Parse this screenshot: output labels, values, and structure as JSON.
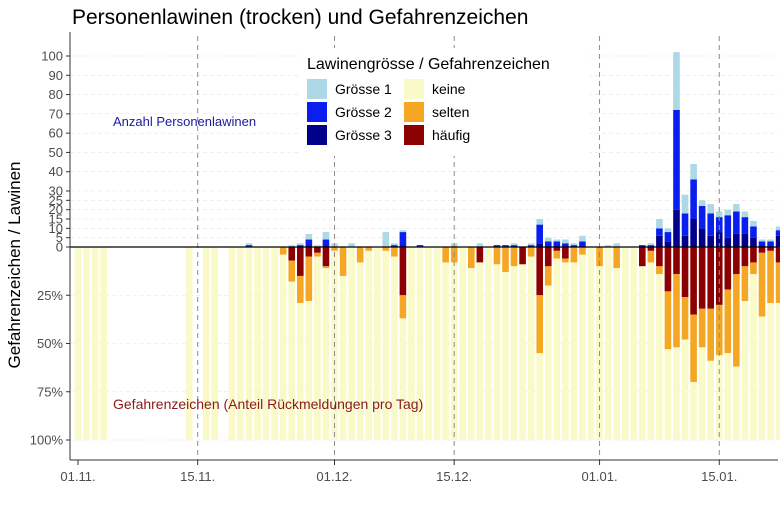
{
  "chart_data": {
    "type": "bar",
    "title": "Personenlawinen (trocken) und Gefahrenzeichen",
    "ylabel": "Gefahrenzeichen   /   Lawinen",
    "annotations": {
      "top": "Anzahl Personenlawinen",
      "bottom": "Gefahrenzeichen (Anteil Rückmeldungen pro Tag)"
    },
    "legend_title": "Lawinengrösse / Gefahrenzeichen",
    "legend_position": "top-center",
    "legend": [
      {
        "key": "g1",
        "label": "Grösse 1",
        "color": "#add8e6"
      },
      {
        "key": "keine",
        "label": "keine",
        "color": "#fafac8"
      },
      {
        "key": "g2",
        "label": "Grösse 2",
        "color": "#0a1ef0"
      },
      {
        "key": "selten",
        "label": "selten",
        "color": "#f5a623"
      },
      {
        "key": "g3",
        "label": "Grösse 3",
        "color": "#00008b"
      },
      {
        "key": "haeufig",
        "label": "häufig",
        "color": "#8b0000"
      }
    ],
    "x_ticks": [
      {
        "day": 0,
        "label": "01.11."
      },
      {
        "day": 14,
        "label": "15.11."
      },
      {
        "day": 30,
        "label": "01.12."
      },
      {
        "day": 44,
        "label": "15.12."
      },
      {
        "day": 61,
        "label": "01.01."
      },
      {
        "day": 75,
        "label": "15.01."
      }
    ],
    "y_ticks_top": [
      0,
      5,
      10,
      15,
      20,
      25,
      30,
      40,
      50,
      60,
      70,
      80,
      90,
      100
    ],
    "y_ticks_bottom": [
      "25%",
      "50%",
      "75%",
      "100%"
    ],
    "gridlines": true,
    "avalanches": [
      {
        "day": 20,
        "g1": 1,
        "g2": 1,
        "g3": 0
      },
      {
        "day": 25,
        "g1": 1,
        "g2": 0,
        "g3": 0
      },
      {
        "day": 26,
        "g1": 1,
        "g2": 1,
        "g3": 0
      },
      {
        "day": 27,
        "g1": 3,
        "g2": 3,
        "g3": 1
      },
      {
        "day": 28,
        "g1": 1,
        "g2": 0,
        "g3": 0
      },
      {
        "day": 29,
        "g1": 4,
        "g2": 3,
        "g3": 1
      },
      {
        "day": 30,
        "g1": 2,
        "g2": 0,
        "g3": 0
      },
      {
        "day": 32,
        "g1": 2,
        "g2": 0,
        "g3": 0
      },
      {
        "day": 36,
        "g1": 8,
        "g2": 0,
        "g3": 0
      },
      {
        "day": 37,
        "g1": 1,
        "g2": 1,
        "g3": 0
      },
      {
        "day": 38,
        "g1": 1,
        "g2": 7,
        "g3": 1
      },
      {
        "day": 40,
        "g1": 0,
        "g2": 1,
        "g3": 0
      },
      {
        "day": 44,
        "g1": 2,
        "g2": 0,
        "g3": 0
      },
      {
        "day": 47,
        "g1": 2,
        "g2": 0,
        "g3": 0
      },
      {
        "day": 49,
        "g1": 0,
        "g2": 1,
        "g3": 0
      },
      {
        "day": 50,
        "g1": 0,
        "g2": 1,
        "g3": 0
      },
      {
        "day": 51,
        "g1": 1,
        "g2": 1,
        "g3": 0
      },
      {
        "day": 53,
        "g1": 1,
        "g2": 1,
        "g3": 0
      },
      {
        "day": 54,
        "g1": 3,
        "g2": 10,
        "g3": 2
      },
      {
        "day": 55,
        "g1": 2,
        "g2": 3,
        "g3": 0
      },
      {
        "day": 56,
        "g1": 1,
        "g2": 3,
        "g3": 0
      },
      {
        "day": 57,
        "g1": 2,
        "g2": 2,
        "g3": 0
      },
      {
        "day": 58,
        "g1": 1,
        "g2": 1,
        "g3": 0
      },
      {
        "day": 59,
        "g1": 3,
        "g2": 3,
        "g3": 0
      },
      {
        "day": 62,
        "g1": 1,
        "g2": 0,
        "g3": 0
      },
      {
        "day": 63,
        "g1": 2,
        "g2": 0,
        "g3": 0
      },
      {
        "day": 66,
        "g1": 0,
        "g2": 1,
        "g3": 0
      },
      {
        "day": 67,
        "g1": 1,
        "g2": 1,
        "g3": 0
      },
      {
        "day": 68,
        "g1": 5,
        "g2": 4,
        "g3": 6
      },
      {
        "day": 69,
        "g1": 2,
        "g2": 5,
        "g3": 3
      },
      {
        "day": 70,
        "g1": 30,
        "g2": 52,
        "g3": 20
      },
      {
        "day": 71,
        "g1": 10,
        "g2": 12,
        "g3": 6
      },
      {
        "day": 72,
        "g1": 8,
        "g2": 21,
        "g3": 15
      },
      {
        "day": 73,
        "g1": 3,
        "g2": 12,
        "g3": 10
      },
      {
        "day": 74,
        "g1": 5,
        "g2": 12,
        "g3": 6
      },
      {
        "day": 75,
        "g1": 3,
        "g2": 8,
        "g3": 8
      },
      {
        "day": 76,
        "g1": 3,
        "g2": 12,
        "g3": 5
      },
      {
        "day": 77,
        "g1": 4,
        "g2": 12,
        "g3": 7
      },
      {
        "day": 78,
        "g1": 3,
        "g2": 9,
        "g3": 7
      },
      {
        "day": 79,
        "g1": 3,
        "g2": 6,
        "g3": 5
      },
      {
        "day": 80,
        "g1": 1,
        "g2": 2,
        "g3": 1
      },
      {
        "day": 81,
        "g1": 1,
        "g2": 3,
        "g3": 0
      },
      {
        "day": 82,
        "g1": 2,
        "g2": 3,
        "g3": 6
      }
    ],
    "signs": [
      {
        "day": 0,
        "haeufig": 0,
        "selten": 0
      },
      {
        "day": 1,
        "haeufig": 0,
        "selten": 0
      },
      {
        "day": 2,
        "haeufig": 0,
        "selten": 0
      },
      {
        "day": 3,
        "haeufig": 0,
        "selten": 0
      },
      {
        "day": 13,
        "haeufig": 0,
        "selten": 0
      },
      {
        "day": 15,
        "haeufig": 0,
        "selten": 0
      },
      {
        "day": 16,
        "haeufig": 0,
        "selten": 0
      },
      {
        "day": 18,
        "haeufig": 0,
        "selten": 0
      },
      {
        "day": 19,
        "haeufig": 0,
        "selten": 0
      },
      {
        "day": 20,
        "haeufig": 0,
        "selten": 0
      },
      {
        "day": 21,
        "haeufig": 0,
        "selten": 0
      },
      {
        "day": 22,
        "haeufig": 0,
        "selten": 0
      },
      {
        "day": 23,
        "haeufig": 0,
        "selten": 0
      },
      {
        "day": 24,
        "haeufig": 0,
        "selten": 0.04
      },
      {
        "day": 25,
        "haeufig": 0.07,
        "selten": 0.11
      },
      {
        "day": 26,
        "haeufig": 0.15,
        "selten": 0.14
      },
      {
        "day": 27,
        "haeufig": 0.05,
        "selten": 0.23
      },
      {
        "day": 28,
        "haeufig": 0.03,
        "selten": 0.02
      },
      {
        "day": 29,
        "haeufig": 0.1,
        "selten": 0.01
      },
      {
        "day": 30,
        "haeufig": 0,
        "selten": 0.02
      },
      {
        "day": 31,
        "haeufig": 0,
        "selten": 0.15
      },
      {
        "day": 32,
        "haeufig": 0,
        "selten": 0
      },
      {
        "day": 33,
        "haeufig": 0,
        "selten": 0.08
      },
      {
        "day": 34,
        "haeufig": 0,
        "selten": 0.02
      },
      {
        "day": 35,
        "haeufig": 0,
        "selten": 0
      },
      {
        "day": 36,
        "haeufig": 0,
        "selten": 0.02
      },
      {
        "day": 37,
        "haeufig": 0,
        "selten": 0.05
      },
      {
        "day": 38,
        "haeufig": 0.25,
        "selten": 0.12
      },
      {
        "day": 39,
        "haeufig": 0,
        "selten": 0
      },
      {
        "day": 40,
        "haeufig": 0,
        "selten": 0
      },
      {
        "day": 41,
        "haeufig": 0,
        "selten": 0
      },
      {
        "day": 42,
        "haeufig": 0,
        "selten": 0
      },
      {
        "day": 43,
        "haeufig": 0,
        "selten": 0.08
      },
      {
        "day": 44,
        "haeufig": 0,
        "selten": 0.08
      },
      {
        "day": 45,
        "haeufig": 0,
        "selten": 0
      },
      {
        "day": 46,
        "haeufig": 0,
        "selten": 0.11
      },
      {
        "day": 47,
        "haeufig": 0.08,
        "selten": 0
      },
      {
        "day": 48,
        "haeufig": 0,
        "selten": 0
      },
      {
        "day": 49,
        "haeufig": 0,
        "selten": 0.09
      },
      {
        "day": 50,
        "haeufig": 0,
        "selten": 0.13
      },
      {
        "day": 51,
        "haeufig": 0,
        "selten": 0.1
      },
      {
        "day": 52,
        "haeufig": 0.09,
        "selten": 0
      },
      {
        "day": 53,
        "haeufig": 0,
        "selten": 0.05
      },
      {
        "day": 54,
        "haeufig": 0.25,
        "selten": 0.3
      },
      {
        "day": 55,
        "haeufig": 0.1,
        "selten": 0.1
      },
      {
        "day": 56,
        "haeufig": 0.02,
        "selten": 0.04
      },
      {
        "day": 57,
        "haeufig": 0.06,
        "selten": 0.02
      },
      {
        "day": 58,
        "haeufig": 0,
        "selten": 0.08
      },
      {
        "day": 59,
        "haeufig": 0,
        "selten": 0.04
      },
      {
        "day": 60,
        "haeufig": 0,
        "selten": 0
      },
      {
        "day": 61,
        "haeufig": 0,
        "selten": 0.1
      },
      {
        "day": 62,
        "haeufig": 0,
        "selten": 0
      },
      {
        "day": 63,
        "haeufig": 0,
        "selten": 0.11
      },
      {
        "day": 64,
        "haeufig": 0,
        "selten": 0
      },
      {
        "day": 65,
        "haeufig": 0,
        "selten": 0
      },
      {
        "day": 66,
        "haeufig": 0.1,
        "selten": 0
      },
      {
        "day": 67,
        "haeufig": 0.02,
        "selten": 0.06
      },
      {
        "day": 68,
        "haeufig": 0.1,
        "selten": 0.04
      },
      {
        "day": 69,
        "haeufig": 0.23,
        "selten": 0.3
      },
      {
        "day": 70,
        "haeufig": 0.14,
        "selten": 0.38
      },
      {
        "day": 71,
        "haeufig": 0.26,
        "selten": 0.22
      },
      {
        "day": 72,
        "haeufig": 0.35,
        "selten": 0.35
      },
      {
        "day": 73,
        "haeufig": 0.32,
        "selten": 0.2
      },
      {
        "day": 74,
        "haeufig": 0.32,
        "selten": 0.27
      },
      {
        "day": 75,
        "haeufig": 0.3,
        "selten": 0.26
      },
      {
        "day": 76,
        "haeufig": 0.22,
        "selten": 0.33
      },
      {
        "day": 77,
        "haeufig": 0.14,
        "selten": 0.48
      },
      {
        "day": 78,
        "haeufig": 0.1,
        "selten": 0.18
      },
      {
        "day": 79,
        "haeufig": 0.08,
        "selten": 0.06
      },
      {
        "day": 80,
        "haeufig": 0.03,
        "selten": 0.33
      },
      {
        "day": 81,
        "haeufig": 0.02,
        "selten": 0.27
      },
      {
        "day": 82,
        "haeufig": 0.08,
        "selten": 0.21
      },
      {
        "day": 83,
        "haeufig": 0,
        "selten": 0.24
      }
    ]
  }
}
